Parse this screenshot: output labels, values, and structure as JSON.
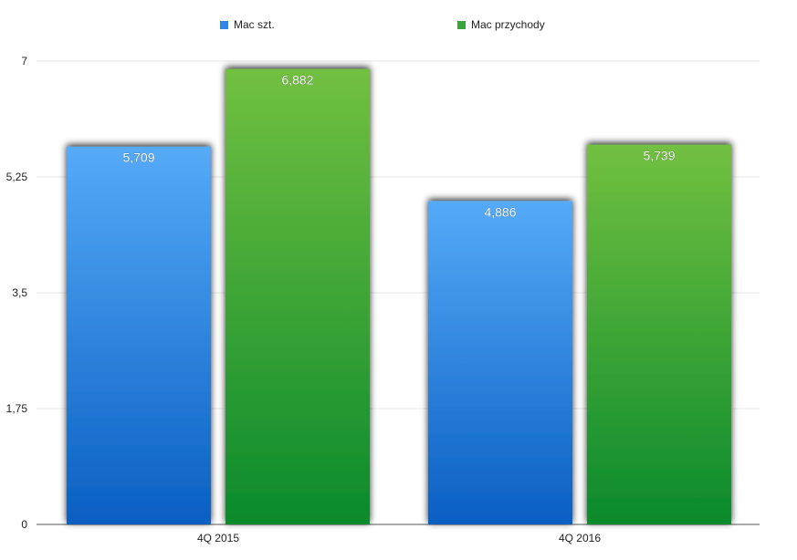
{
  "chart_data": {
    "type": "bar",
    "categories": [
      "4Q 2015",
      "4Q 2016"
    ],
    "series": [
      {
        "name": "Mac szt.",
        "values": [
          5.709,
          4.886
        ],
        "labels": [
          "5,709",
          "4,886"
        ],
        "color": "#2f86e6"
      },
      {
        "name": "Mac przychody",
        "values": [
          6.882,
          5.739
        ],
        "labels": [
          "6,882",
          "5,739"
        ],
        "color": "#3aa33a"
      }
    ],
    "yticks": [
      {
        "value": 0,
        "label": "0"
      },
      {
        "value": 1.75,
        "label": "1,75"
      },
      {
        "value": 3.5,
        "label": "3,5"
      },
      {
        "value": 5.25,
        "label": "5,25"
      },
      {
        "value": 7,
        "label": "7"
      }
    ],
    "ylim": [
      0,
      7
    ],
    "grid": true,
    "legend_position": "top"
  },
  "colors": {
    "blue_top": "#55aaf8",
    "blue_bottom": "#0a5fc2",
    "green_top": "#72c040",
    "green_bottom": "#0a8a2c",
    "grid": "#e6e6e6",
    "axis": "#555555"
  }
}
